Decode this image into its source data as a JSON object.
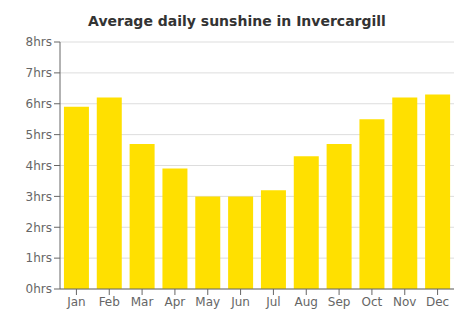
{
  "chart_data": {
    "type": "bar",
    "title": "Average daily sunshine in Invercargill",
    "categories": [
      "Jan",
      "Feb",
      "Mar",
      "Apr",
      "May",
      "Jun",
      "Jul",
      "Aug",
      "Sep",
      "Oct",
      "Nov",
      "Dec"
    ],
    "values": [
      5.9,
      6.2,
      4.7,
      3.9,
      3.0,
      3.0,
      3.2,
      4.3,
      4.7,
      5.5,
      6.2,
      6.3
    ],
    "color": "#FFE000",
    "ylim": [
      0,
      8
    ],
    "yticks": [
      {
        "value": 0,
        "label": "0hrs"
      },
      {
        "value": 1,
        "label": "1hrs"
      },
      {
        "value": 2,
        "label": "2hrs"
      },
      {
        "value": 3,
        "label": "3hrs"
      },
      {
        "value": 4,
        "label": "4hrs"
      },
      {
        "value": 5,
        "label": "5hrs"
      },
      {
        "value": 6,
        "label": "6hrs"
      },
      {
        "value": 7,
        "label": "7hrs"
      },
      {
        "value": 8,
        "label": "8hrs"
      }
    ],
    "grid": true
  }
}
